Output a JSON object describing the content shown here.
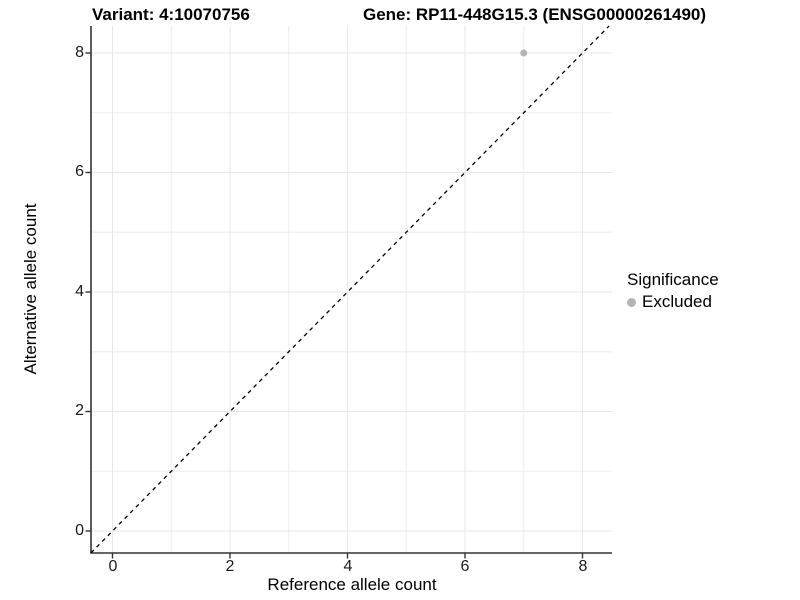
{
  "titles": {
    "variant": "Variant: 4:10070756",
    "gene": "Gene: RP11-448G15.3 (ENSG00000261490)"
  },
  "axes": {
    "x_label": "Reference allele count",
    "y_label": "Alternative allele count",
    "x_tick_labels": [
      "0",
      "2",
      "4",
      "6",
      "8"
    ],
    "y_tick_labels": [
      "0",
      "2",
      "4",
      "6",
      "8"
    ]
  },
  "legend": {
    "title": "Significance",
    "items": [
      {
        "label": "Excluded",
        "color": "#b4b4b4"
      }
    ]
  },
  "colors": {
    "background": "#ffffff",
    "grid_major": "#e7e7e7",
    "grid_minor": "#ededed",
    "axis_line": "#333333",
    "tick_mark": "#333333",
    "reference_line": "#000000",
    "point_excluded": "#b4b4b4",
    "text": "#000000"
  },
  "chart_data": {
    "type": "scatter",
    "title": "Variant: 4:10070756 — Gene: RP11-448G15.3 (ENSG00000261490)",
    "xlabel": "Reference allele count",
    "ylabel": "Alternative allele count",
    "x_ticks": [
      0,
      2,
      4,
      6,
      8
    ],
    "y_ticks": [
      0,
      2,
      4,
      6,
      8
    ],
    "x_minor_ticks": [
      1,
      3,
      5,
      7
    ],
    "y_minor_ticks": [
      1,
      3,
      5,
      7
    ],
    "xlim": [
      -0.4,
      8.5
    ],
    "ylim": [
      -0.4,
      8.45
    ],
    "grid": "major+minor",
    "legend_position": "right",
    "series": [
      {
        "name": "Excluded",
        "color": "#b4b4b4",
        "points": [
          {
            "x": 7,
            "y": 8
          }
        ]
      }
    ],
    "reference_line": {
      "slope": 1,
      "intercept": 0,
      "style": "dashed",
      "color": "#000000",
      "meaning": "identity line y = x"
    }
  }
}
